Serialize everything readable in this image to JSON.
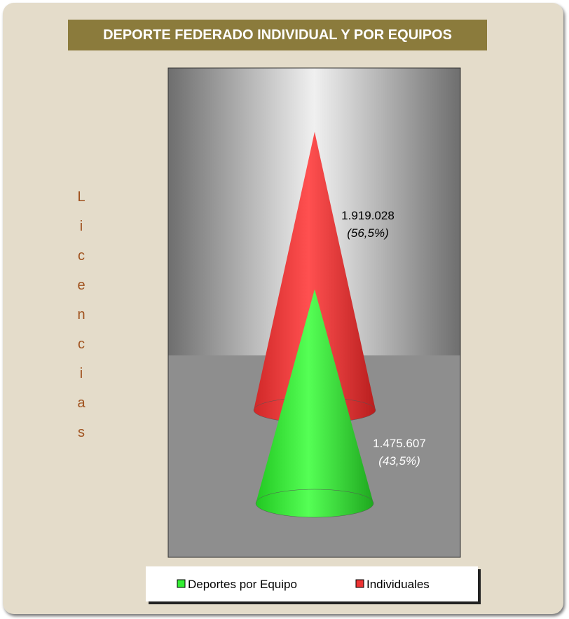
{
  "chart_data": {
    "type": "cone",
    "title": "DEPORTE FEDERADO INDIVIDUAL Y POR EQUIPOS",
    "y_label": "Licencias",
    "series": [
      {
        "name": "Deportes por Equipo",
        "color": "#33ee33",
        "values": [
          1475607
        ],
        "value_labels": [
          "1.475.607"
        ],
        "shares": [
          43.5
        ],
        "share_labels": [
          "(43,5%)"
        ]
      },
      {
        "name": "Individuales",
        "color": "#ee3333",
        "values": [
          1919028
        ],
        "value_labels": [
          "1.919.028"
        ],
        "shares": [
          56.5
        ],
        "share_labels": [
          "(56,5%)"
        ]
      }
    ]
  }
}
